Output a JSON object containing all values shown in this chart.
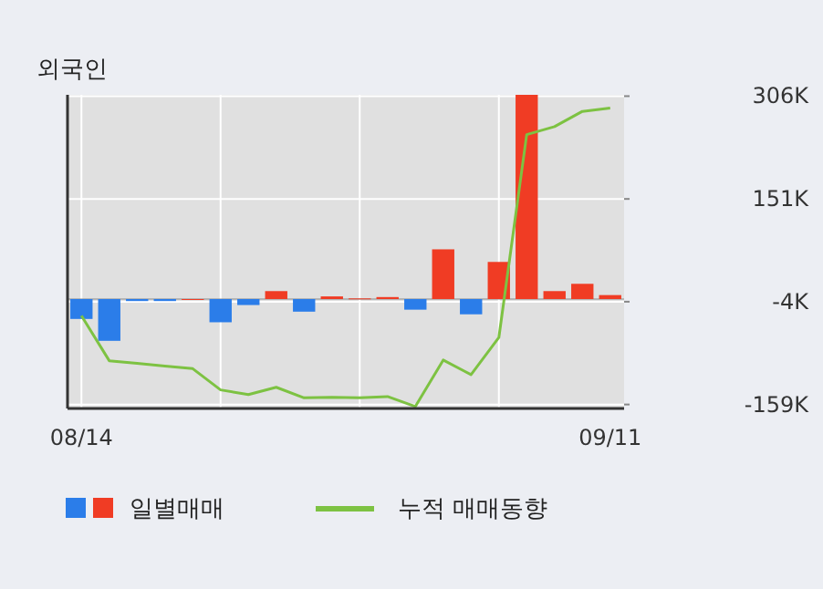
{
  "chart_data": {
    "type": "bar",
    "title": "외국인",
    "categories": [
      "08/14",
      null,
      null,
      null,
      null,
      null,
      null,
      null,
      null,
      null,
      null,
      null,
      null,
      null,
      null,
      null,
      null,
      null,
      null,
      "09/11"
    ],
    "series": [
      {
        "name": "일별매매",
        "colors": [
          "#2b7de9",
          "#2b7de9",
          "#2b7de9",
          "#2b7de9",
          "#f03c24",
          "#2b7de9",
          "#2b7de9",
          "#f03c24",
          "#2b7de9",
          "#f03c24",
          "#f03c24",
          "#f03c24",
          "#2b7de9",
          "#f03c24",
          "#2b7de9",
          "#f03c24",
          "#f03c24",
          "#f03c24",
          "#f03c24",
          "#f03c24"
        ],
        "values": [
          -30,
          -63,
          -3,
          -3,
          0,
          -35,
          -9,
          12,
          -19,
          4,
          1,
          3,
          -16,
          75,
          -23,
          56,
          308,
          12,
          23,
          6
        ]
      },
      {
        "name": "누적 매매동향",
        "type": "line",
        "color": "#7dc242",
        "values": [
          -25,
          -93,
          -97,
          -101,
          -105,
          -137,
          -144,
          -133,
          -149,
          -148,
          -149,
          -147,
          -162,
          -92,
          -114,
          -58,
          248,
          260,
          283,
          288
        ]
      }
    ],
    "ylim": [
      -165,
      308
    ],
    "yticks": [
      {
        "value": 306,
        "label": "306K"
      },
      {
        "value": 151,
        "label": "151K"
      },
      {
        "value": -4,
        "label": "-4K"
      },
      {
        "value": -159,
        "label": "-159K"
      }
    ],
    "grid": true,
    "legend": "bottom"
  }
}
